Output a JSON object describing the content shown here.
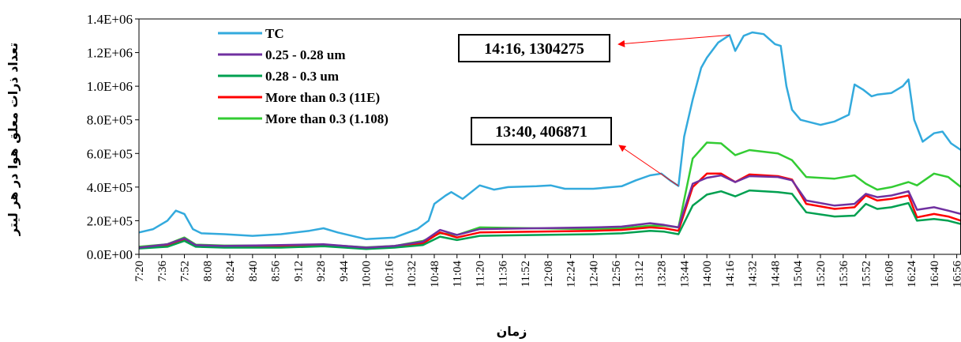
{
  "chart_data": {
    "type": "line",
    "ylabel": "تعداد ذرات معلق هوا در هر ليتر",
    "xlabel": "زمان",
    "ylim": [
      0,
      1400000
    ],
    "yticks": [
      0,
      200000,
      400000,
      600000,
      800000,
      1000000,
      1200000,
      1400000
    ],
    "ytick_labels": [
      "0.0E+00",
      "2.0E+05",
      "4.0E+05",
      "6.0E+05",
      "8.0E+05",
      "1.0E+06",
      "1.2E+06",
      "1.4E+06"
    ],
    "x_range": [
      "7:20",
      "16:59"
    ],
    "xtick_labels": [
      "7:20",
      "7:36",
      "7:52",
      "8:08",
      "8:24",
      "8:40",
      "8:56",
      "9:12",
      "9:28",
      "9:44",
      "10:00",
      "10:16",
      "10:32",
      "10:48",
      "11:04",
      "11:20",
      "11:36",
      "11:52",
      "12:08",
      "12:24",
      "12:40",
      "12:56",
      "13:12",
      "13:28",
      "13:44",
      "14:00",
      "14:16",
      "14:32",
      "14:48",
      "15:04",
      "15:20",
      "15:36",
      "15:52",
      "16:08",
      "16:24",
      "16:40",
      "16:56"
    ],
    "grid": false,
    "legend_position": "top-left",
    "series": [
      {
        "name": "TC",
        "color": "#33aadd",
        "x": [
          "7:20",
          "7:30",
          "7:40",
          "7:46",
          "7:52",
          "7:58",
          "8:04",
          "8:20",
          "8:40",
          "9:00",
          "9:20",
          "9:30",
          "9:40",
          "10:00",
          "10:20",
          "10:36",
          "10:44",
          "10:48",
          "10:56",
          "11:00",
          "11:08",
          "11:20",
          "11:30",
          "11:40",
          "12:00",
          "12:10",
          "12:20",
          "12:40",
          "13:00",
          "13:10",
          "13:20",
          "13:28",
          "13:34",
          "13:40",
          "13:44",
          "13:50",
          "13:56",
          "14:00",
          "14:08",
          "14:16",
          "14:20",
          "14:26",
          "14:32",
          "14:40",
          "14:48",
          "14:52",
          "14:56",
          "15:00",
          "15:06",
          "15:20",
          "15:30",
          "15:40",
          "15:44",
          "15:50",
          "15:56",
          "16:00",
          "16:10",
          "16:18",
          "16:22",
          "16:26",
          "16:32",
          "16:40",
          "16:46",
          "16:52",
          "16:59"
        ],
        "y": [
          130000,
          150000,
          200000,
          260000,
          240000,
          150000,
          125000,
          120000,
          110000,
          120000,
          140000,
          155000,
          130000,
          90000,
          100000,
          150000,
          200000,
          300000,
          350000,
          370000,
          330000,
          410000,
          385000,
          400000,
          405000,
          410000,
          390000,
          390000,
          405000,
          440000,
          470000,
          480000,
          440000,
          406871,
          700000,
          920000,
          1110000,
          1170000,
          1260000,
          1304275,
          1210000,
          1300000,
          1320000,
          1310000,
          1250000,
          1240000,
          1000000,
          860000,
          800000,
          770000,
          790000,
          830000,
          1010000,
          980000,
          940000,
          950000,
          960000,
          1000000,
          1040000,
          800000,
          670000,
          720000,
          730000,
          660000,
          620000
        ]
      },
      {
        "name": "0.25 - 0.28 um",
        "color": "#7030a0",
        "x": [
          "7:20",
          "7:40",
          "7:52",
          "8:00",
          "8:20",
          "9:00",
          "9:30",
          "10:00",
          "10:20",
          "10:40",
          "10:52",
          "11:04",
          "11:20",
          "12:00",
          "12:40",
          "13:00",
          "13:20",
          "13:30",
          "13:40",
          "13:50",
          "14:00",
          "14:10",
          "14:20",
          "14:30",
          "14:50",
          "15:00",
          "15:10",
          "15:30",
          "15:44",
          "15:52",
          "16:00",
          "16:10",
          "16:22",
          "16:28",
          "16:40",
          "16:50",
          "16:59"
        ],
        "y": [
          40000,
          60000,
          95000,
          55000,
          50000,
          55000,
          60000,
          40000,
          50000,
          75000,
          145000,
          115000,
          150000,
          155000,
          160000,
          165000,
          185000,
          175000,
          160000,
          420000,
          455000,
          470000,
          430000,
          465000,
          460000,
          440000,
          320000,
          290000,
          300000,
          360000,
          340000,
          350000,
          375000,
          265000,
          280000,
          260000,
          240000
        ]
      },
      {
        "name": "0.28 - 0.3 um",
        "color": "#00a050",
        "x": [
          "7:20",
          "7:40",
          "7:52",
          "8:00",
          "8:20",
          "9:00",
          "9:30",
          "10:00",
          "10:20",
          "10:40",
          "10:52",
          "11:04",
          "11:20",
          "12:00",
          "12:40",
          "13:00",
          "13:20",
          "13:30",
          "13:40",
          "13:50",
          "14:00",
          "14:10",
          "14:20",
          "14:30",
          "14:50",
          "15:00",
          "15:10",
          "15:30",
          "15:44",
          "15:52",
          "16:00",
          "16:10",
          "16:22",
          "16:28",
          "16:40",
          "16:50",
          "16:59"
        ],
        "y": [
          35000,
          45000,
          80000,
          45000,
          40000,
          40000,
          48000,
          32000,
          40000,
          55000,
          105000,
          85000,
          110000,
          115000,
          120000,
          125000,
          140000,
          135000,
          120000,
          290000,
          355000,
          375000,
          345000,
          380000,
          370000,
          360000,
          250000,
          225000,
          230000,
          300000,
          270000,
          280000,
          305000,
          200000,
          210000,
          200000,
          180000
        ]
      },
      {
        "name": "More than 0.3 (11E)",
        "color": "#ff0000",
        "x": [
          "7:20",
          "7:40",
          "7:52",
          "8:00",
          "8:20",
          "9:00",
          "9:30",
          "10:00",
          "10:20",
          "10:40",
          "10:52",
          "11:04",
          "11:20",
          "12:00",
          "12:40",
          "13:00",
          "13:20",
          "13:30",
          "13:40",
          "13:50",
          "14:00",
          "14:10",
          "14:20",
          "14:30",
          "14:50",
          "15:00",
          "15:10",
          "15:30",
          "15:44",
          "15:52",
          "16:00",
          "16:10",
          "16:22",
          "16:28",
          "16:40",
          "16:50",
          "16:59"
        ],
        "y": [
          38000,
          55000,
          90000,
          50000,
          45000,
          48000,
          55000,
          38000,
          45000,
          65000,
          130000,
          100000,
          130000,
          135000,
          140000,
          145000,
          160000,
          155000,
          140000,
          400000,
          480000,
          480000,
          430000,
          475000,
          465000,
          445000,
          300000,
          270000,
          280000,
          350000,
          320000,
          330000,
          350000,
          220000,
          240000,
          225000,
          200000
        ]
      },
      {
        "name": "More than 0.3 (1.108)",
        "color": "#33cc33",
        "x": [
          "7:20",
          "7:40",
          "7:52",
          "8:00",
          "8:20",
          "9:00",
          "9:30",
          "10:00",
          "10:20",
          "10:40",
          "10:52",
          "11:04",
          "11:20",
          "12:00",
          "12:40",
          "13:00",
          "13:20",
          "13:30",
          "13:40",
          "13:50",
          "14:00",
          "14:10",
          "14:20",
          "14:30",
          "14:50",
          "15:00",
          "15:10",
          "15:30",
          "15:44",
          "15:52",
          "16:00",
          "16:10",
          "16:22",
          "16:28",
          "16:40",
          "16:50",
          "16:59"
        ],
        "y": [
          45000,
          60000,
          100000,
          58000,
          52000,
          52000,
          58000,
          42000,
          50000,
          80000,
          125000,
          115000,
          160000,
          155000,
          150000,
          155000,
          170000,
          170000,
          160000,
          570000,
          665000,
          660000,
          590000,
          620000,
          600000,
          560000,
          460000,
          450000,
          470000,
          420000,
          385000,
          400000,
          430000,
          410000,
          480000,
          460000,
          400000
        ]
      }
    ],
    "annotations": [
      {
        "text": "14:16, 1304275",
        "x": "14:16",
        "y": 1304275
      },
      {
        "text": "13:40, 406871",
        "x": "13:40",
        "y": 406871
      }
    ]
  }
}
